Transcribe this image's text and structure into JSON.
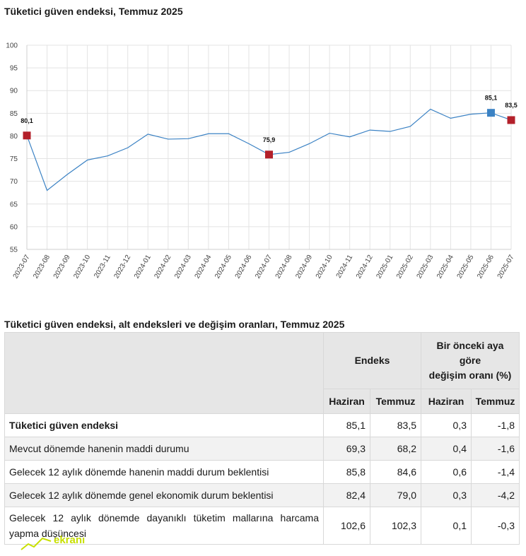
{
  "chart_title": "Tüketici güven endeksi, Temmuz 2025",
  "table_title": "Tüketici güven endeksi, alt endeksleri ve değişim oranları, Temmuz 2025",
  "chart_data": {
    "type": "line",
    "title": "Tüketici güven endeksi, Temmuz 2025",
    "xlabel": "",
    "ylabel": "",
    "ylim": [
      55,
      100
    ],
    "yticks": [
      55,
      60,
      65,
      70,
      75,
      80,
      85,
      90,
      95,
      100
    ],
    "grid": true,
    "x": [
      "2023-07",
      "2023-08",
      "2023-09",
      "2023-10",
      "2023-11",
      "2023-12",
      "2024-01",
      "2024-02",
      "2024-03",
      "2024-04",
      "2024-05",
      "2024-06",
      "2024-07",
      "2024-08",
      "2024-09",
      "2024-10",
      "2024-11",
      "2024-12",
      "2025-01",
      "2025-02",
      "2025-03",
      "2025-04",
      "2025-05",
      "2025-06",
      "2025-07"
    ],
    "series": [
      {
        "values": [
          80.1,
          68.0,
          71.5,
          74.7,
          75.6,
          77.4,
          80.4,
          79.3,
          79.4,
          80.5,
          80.5,
          78.3,
          75.9,
          76.4,
          78.3,
          80.6,
          79.8,
          81.3,
          81.0,
          82.1,
          85.9,
          83.9,
          84.8,
          85.1,
          83.5
        ],
        "color": "#3b82c4"
      }
    ],
    "highlights": [
      {
        "index": 0,
        "label": "80,1",
        "color": "#b3202a"
      },
      {
        "index": 12,
        "label": "75,9",
        "color": "#b3202a"
      },
      {
        "index": 23,
        "label": "85,1",
        "color": "#3b82c4"
      },
      {
        "index": 24,
        "label": "83,5",
        "color": "#b3202a"
      }
    ]
  },
  "table": {
    "header_endeks": "Endeks",
    "header_change_lines": [
      "Bir önceki aya",
      "göre",
      "değişim oranı (%)"
    ],
    "sub_headers": [
      "Haziran",
      "Temmuz",
      "Haziran",
      "Temmuz"
    ],
    "rows": [
      {
        "label": "Tüketici güven endeksi",
        "values": [
          "85,1",
          "83,5",
          "0,3",
          "-1,8"
        ]
      },
      {
        "label": "Mevcut dönemde hanenin maddi durumu",
        "values": [
          "69,3",
          "68,2",
          "0,4",
          "-1,6"
        ]
      },
      {
        "label": "Gelecek 12 aylık dönemde hanenin maddi durum beklentisi",
        "values": [
          "85,8",
          "84,6",
          "0,6",
          "-1,4"
        ]
      },
      {
        "label": "Gelecek 12 aylık dönemde genel ekonomik durum beklentisi",
        "values": [
          "82,4",
          "79,0",
          "0,3",
          "-4,2"
        ]
      },
      {
        "label": "Gelecek 12 aylık dönemde dayanıklı tüketim mallarına harcama yapma düşüncesi",
        "values": [
          "102,6",
          "102,3",
          "0,1",
          "-0,3"
        ]
      }
    ]
  },
  "watermark": {
    "text": "ekranı"
  },
  "colors": {
    "line": "#3b82c4",
    "highlight_red": "#b3202a",
    "highlight_blue": "#3b82c4",
    "logo": "#c8e000"
  }
}
